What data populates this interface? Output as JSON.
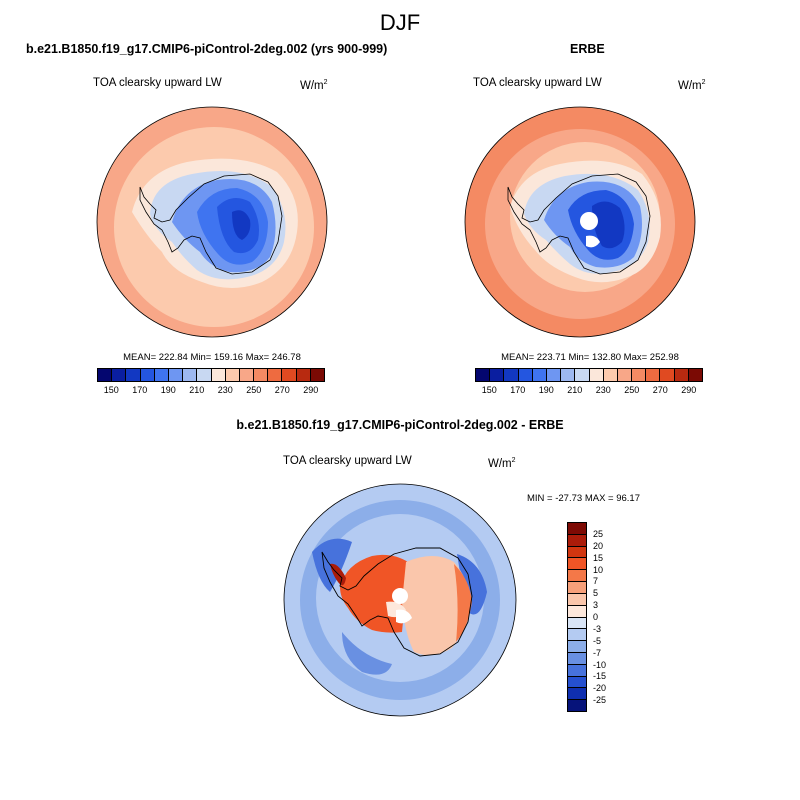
{
  "figure": {
    "season": "DJF"
  },
  "chart_data": [
    {
      "type": "heatmap",
      "title": "b.e21.B1850.f19_g17.CMIP6-piControl-2deg.002 (yrs 900-999)",
      "variable": "TOA clearsky upward LW",
      "units_base": "W/m",
      "units_exp": "2",
      "stats_text": "MEAN= 222.84  Min= 159.16  Max= 246.78",
      "mean": 222.84,
      "min": 159.16,
      "max": 246.78,
      "levels": [
        "150",
        "170",
        "190",
        "210",
        "230",
        "250",
        "270",
        "290"
      ],
      "colors": [
        "#04066f",
        "#0a1ea0",
        "#1238c2",
        "#2456e0",
        "#3f74f0",
        "#6e96f2",
        "#9db8f0",
        "#c8d8f2",
        "#fbe7da",
        "#fccaad",
        "#f8a788",
        "#f48a63",
        "#ee6b40",
        "#e04a21",
        "#b82a10",
        "#7b0a04"
      ]
    },
    {
      "type": "heatmap",
      "title": "ERBE",
      "variable": "TOA clearsky upward LW",
      "units_base": "W/m",
      "units_exp": "2",
      "stats_text": "MEAN= 223.71  Min= 132.80  Max= 252.98",
      "mean": 223.71,
      "min": 132.8,
      "max": 252.98,
      "levels": [
        "150",
        "170",
        "190",
        "210",
        "230",
        "250",
        "270",
        "290"
      ],
      "colors": [
        "#04066f",
        "#0a1ea0",
        "#1238c2",
        "#2456e0",
        "#3f74f0",
        "#6e96f2",
        "#9db8f0",
        "#c8d8f2",
        "#fbe7da",
        "#fccaad",
        "#f8a788",
        "#f48a63",
        "#ee6b40",
        "#e04a21",
        "#b82a10",
        "#7b0a04"
      ]
    },
    {
      "type": "heatmap",
      "title": "b.e21.B1850.f19_g17.CMIP6-piControl-2deg.002 - ERBE",
      "variable": "TOA clearsky upward LW",
      "units_base": "W/m",
      "units_exp": "2",
      "stats_text": "MIN = -27.73 MAX =  96.17",
      "min": -27.73,
      "max": 96.17,
      "levels": [
        "25",
        "20",
        "15",
        "10",
        "7",
        "5",
        "3",
        "0",
        "-3",
        "-5",
        "-7",
        "-10",
        "-15",
        "-20",
        "-25"
      ],
      "colors": [
        "#7d0a04",
        "#ab1c0a",
        "#d13610",
        "#f05526",
        "#f47848",
        "#f7a07a",
        "#fac6ab",
        "#fde8dc",
        "#d9e5f6",
        "#b4cbf2",
        "#8caee9",
        "#6990e2",
        "#4772dc",
        "#2550d0",
        "#0f2fb0",
        "#06137a"
      ]
    }
  ]
}
